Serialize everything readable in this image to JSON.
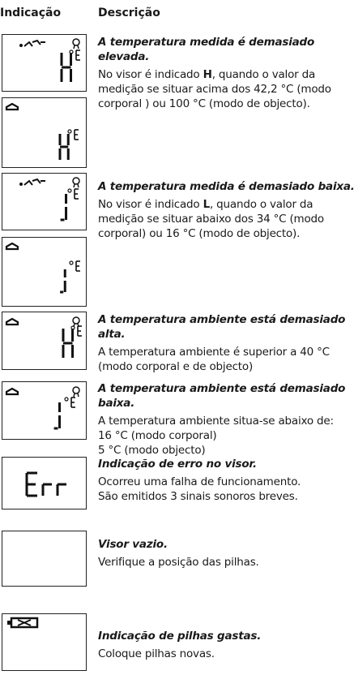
{
  "header": {
    "indication": "Indicação",
    "description": "Descrição"
  },
  "rows": [
    {
      "title": [
        "A temperatura medida é demasiado",
        "elevada."
      ],
      "body": [
        [
          "No visor é indicado ",
          "H",
          ", quando o valor da"
        ],
        "medição se situar acima dos 42,2 °C (modo",
        "corporal ) ou 100 °C (modo de objecto)."
      ]
    },
    {
      "title": [
        "A temperatura medida é demasiado baixa."
      ],
      "body": [
        [
          "No visor é indicado ",
          "L",
          ", quando o valor da"
        ],
        "medição se situar abaixo dos 34 °C (modo",
        "corporal) ou 16 °C (modo de objecto)."
      ]
    },
    {
      "title": [
        "A temperatura ambiente está demasiado",
        "alta."
      ],
      "body": [
        "A temperatura ambiente é superior a 40 °C",
        "(modo corporal e de objecto)"
      ]
    },
    {
      "title": [
        "A temperatura ambiente está demasiado",
        "baixa."
      ],
      "body": [
        "A temperatura ambiente situa-se abaixo de:",
        "16 °C (modo corporal)",
        "5 °C (modo objecto)"
      ]
    },
    {
      "title": [
        "Indicação de erro no visor."
      ],
      "body": [
        "Ocorreu uma falha de funcionamento.",
        "São emitidos 3 sinais sonoros breves."
      ]
    },
    {
      "title": [
        "Visor vazio."
      ],
      "body": [
        "Verifique a posição das pilhas."
      ]
    },
    {
      "title": [
        "Indicação de pilhas gastas."
      ],
      "body": [
        "Coloque pilhas novas."
      ]
    }
  ]
}
